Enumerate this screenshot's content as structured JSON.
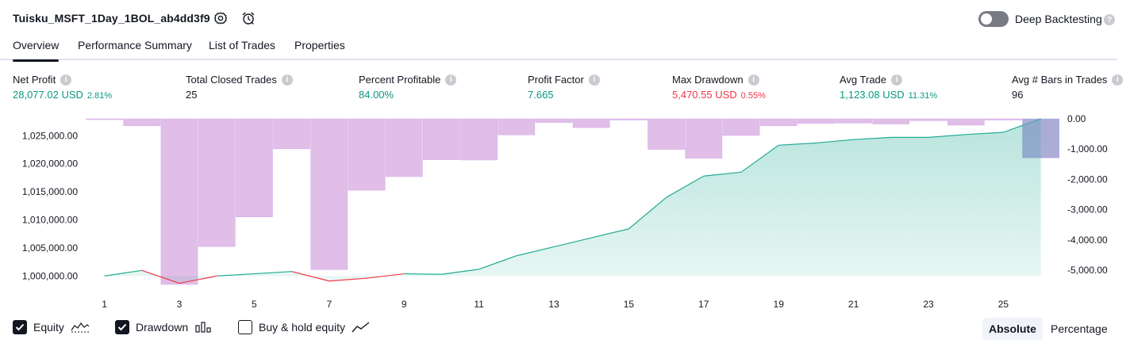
{
  "header": {
    "strategy_name": "Tuisku_MSFT_1Day_1BOL_ab4dd3f9",
    "deep_backtesting_label": "Deep Backtesting",
    "deep_backtesting_enabled": false
  },
  "tabs": [
    {
      "label": "Overview",
      "active": true
    },
    {
      "label": "Performance Summary",
      "active": false
    },
    {
      "label": "List of Trades",
      "active": false
    },
    {
      "label": "Properties",
      "active": false
    }
  ],
  "metrics": [
    {
      "label": "Net Profit",
      "value": "28,077.02 USD",
      "pct": "2.81%",
      "tone": "green"
    },
    {
      "label": "Total Closed Trades",
      "value": "25",
      "pct": "",
      "tone": "dark"
    },
    {
      "label": "Percent Profitable",
      "value": "84.00%",
      "pct": "",
      "tone": "green"
    },
    {
      "label": "Profit Factor",
      "value": "7.665",
      "pct": "",
      "tone": "green"
    },
    {
      "label": "Max Drawdown",
      "value": "5,470.55 USD",
      "pct": "0.55%",
      "tone": "red"
    },
    {
      "label": "Avg Trade",
      "value": "1,123.08 USD",
      "pct": "11.31%",
      "tone": "green"
    },
    {
      "label": "Avg # Bars in Trades",
      "value": "96",
      "pct": "",
      "tone": "dark"
    }
  ],
  "chart_data": {
    "type": "bar",
    "x": [
      1,
      2,
      3,
      4,
      5,
      6,
      7,
      8,
      9,
      10,
      11,
      12,
      13,
      14,
      15,
      16,
      17,
      18,
      19,
      20,
      21,
      22,
      23,
      24,
      25,
      26
    ],
    "x_tick_labels": [
      "1",
      "3",
      "5",
      "7",
      "9",
      "11",
      "13",
      "15",
      "17",
      "19",
      "21",
      "23",
      "25"
    ],
    "left_axis": {
      "ticks": [
        "1,000,000.00",
        "1,005,000.00",
        "1,010,000.00",
        "1,015,000.00",
        "1,020,000.00",
        "1,025,000.00"
      ],
      "ylim": [
        998500,
        1028000
      ]
    },
    "right_axis": {
      "ticks": [
        "0.00",
        "-1,000.00",
        "-2,000.00",
        "-3,000.00",
        "-4,000.00",
        "-5,000.00"
      ],
      "ylim": [
        -5470.55,
        0
      ]
    },
    "series": [
      {
        "name": "Equity",
        "axis": "left",
        "type": "area",
        "values": [
          1000000,
          1001000,
          998700,
          1000000,
          1000400,
          1000800,
          999100,
          999600,
          1000400,
          1000300,
          1001200,
          1003600,
          1005200,
          1006800,
          1008400,
          1014000,
          1017800,
          1018500,
          1023300,
          1023700,
          1024300,
          1024700,
          1024700,
          1025200,
          1025600,
          1028000
        ]
      },
      {
        "name": "Drawdown",
        "axis": "right",
        "type": "bar",
        "values": [
          -20,
          -230,
          -5470.55,
          -4220,
          -3240,
          -990,
          -4980,
          -2360,
          -1910,
          -1350,
          -1360,
          -530,
          -120,
          -290,
          -40,
          -1010,
          -1300,
          -550,
          -230,
          -150,
          -140,
          -170,
          -60,
          -210,
          -40,
          -1290
        ]
      }
    ],
    "colors": {
      "equity_line": "#22ab94",
      "equity_fill": "#22ab94",
      "equity_below_start": "#f23645",
      "drawdown": "#e1bee7",
      "drawdown_stroke": "#d1a8f0",
      "overlap": "#7e9fc9"
    }
  },
  "legend": {
    "items": [
      {
        "label": "Equity",
        "checked": true
      },
      {
        "label": "Drawdown",
        "checked": true
      },
      {
        "label": "Buy & hold equity",
        "checked": false
      }
    ],
    "modes": [
      {
        "label": "Absolute",
        "active": true
      },
      {
        "label": "Percentage",
        "active": false
      }
    ]
  }
}
